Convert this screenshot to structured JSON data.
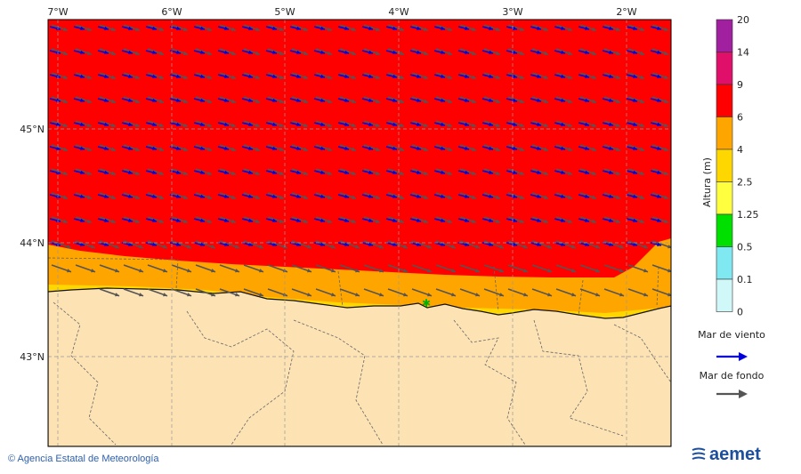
{
  "map": {
    "lon_labels": [
      "7°W",
      "6°W",
      "5°W",
      "4°W",
      "3°W",
      "2°W"
    ],
    "lat_labels": [
      "45°N",
      "44°N",
      "43°N"
    ]
  },
  "colorbar": {
    "title": "Altura (m)",
    "ticks": [
      "20",
      "14",
      "9",
      "6",
      "4",
      "2.5",
      "1.25",
      "0.5",
      "0.1",
      "0"
    ],
    "colors": [
      "#a020a0",
      "#e0106a",
      "#ff0000",
      "#ffa500",
      "#ffd700",
      "#ffff40",
      "#00e000",
      "#80e8f0",
      "#d0f8f8"
    ]
  },
  "legend": {
    "wind_label": "Mar de viento",
    "wind_color": "#0000dd",
    "swell_label": "Mar de fondo",
    "swell_color": "#555555"
  },
  "footer": {
    "credit": "© Agencia Estatal de Meteorología",
    "brand": "aemet"
  }
}
